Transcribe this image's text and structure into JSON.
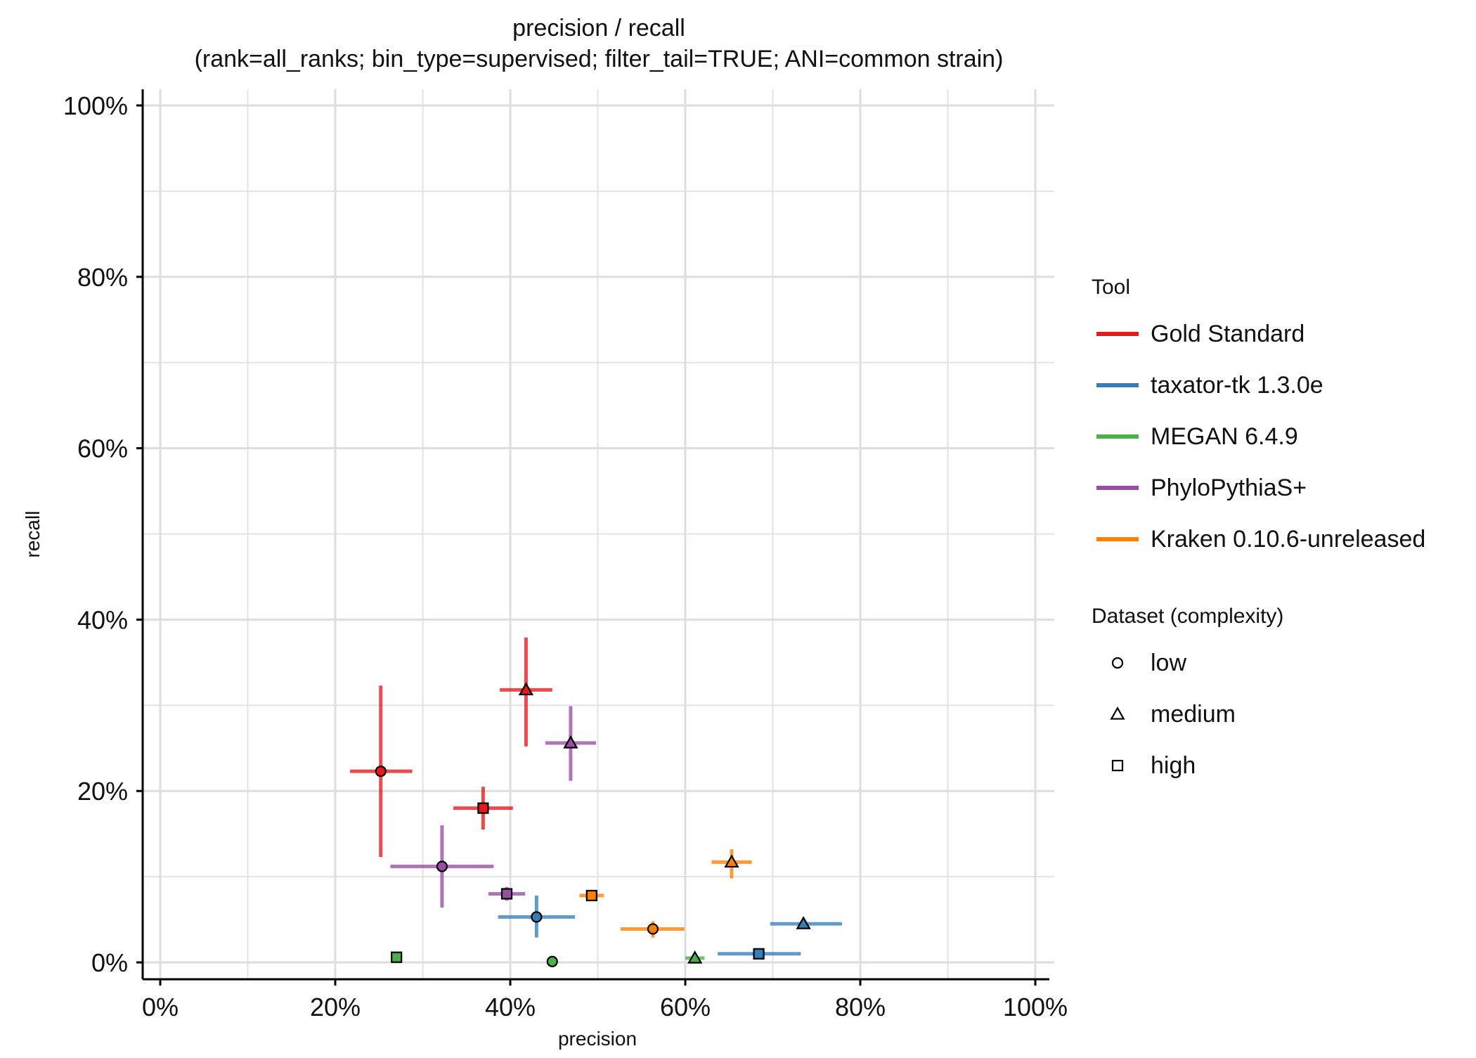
{
  "chart_data": {
    "type": "scatter",
    "title": "precision / recall",
    "subtitle": "(rank=all_ranks; bin_type=supervised; filter_tail=TRUE; ANI=common strain)",
    "xlabel": "precision",
    "ylabel": "recall",
    "xlim": [
      0,
      100
    ],
    "ylim": [
      0,
      100
    ],
    "x_ticks": [
      0,
      20,
      40,
      60,
      80,
      100
    ],
    "y_ticks": [
      0,
      20,
      40,
      60,
      80,
      100
    ],
    "x_tick_labels": [
      "0%",
      "20%",
      "40%",
      "60%",
      "80%",
      "100%"
    ],
    "y_tick_labels": [
      "0%",
      "20%",
      "40%",
      "60%",
      "80%",
      "100%"
    ],
    "grid": true,
    "legend_placement": "right",
    "legend_tool_title": "Tool",
    "legend_dataset_title": "Dataset (complexity)",
    "datasets": [
      {
        "key": "low",
        "label": "low",
        "shape": "circle"
      },
      {
        "key": "medium",
        "label": "medium",
        "shape": "triangle"
      },
      {
        "key": "high",
        "label": "high",
        "shape": "square"
      }
    ],
    "series": [
      {
        "name": "Gold Standard",
        "color": "#e41a1c",
        "points": [
          {
            "dataset": "low",
            "x": 25.2,
            "y": 22.3,
            "x_err": [
              21.7,
              28.8
            ],
            "y_err": [
              12.3,
              32.3
            ]
          },
          {
            "dataset": "medium",
            "x": 41.8,
            "y": 31.8,
            "x_err": [
              38.8,
              44.8
            ],
            "y_err": [
              25.2,
              37.9
            ]
          },
          {
            "dataset": "high",
            "x": 36.9,
            "y": 18.0,
            "x_err": [
              33.5,
              40.3
            ],
            "y_err": [
              15.5,
              20.5
            ]
          }
        ]
      },
      {
        "name": "taxator-tk 1.3.0e",
        "color": "#377eb8",
        "points": [
          {
            "dataset": "low",
            "x": 43.0,
            "y": 5.3,
            "x_err": [
              38.6,
              47.4
            ],
            "y_err": [
              2.9,
              7.8
            ]
          },
          {
            "dataset": "medium",
            "x": 73.5,
            "y": 4.5,
            "x_err": [
              69.7,
              77.9
            ],
            "y_err": [
              4.0,
              5.0
            ]
          },
          {
            "dataset": "high",
            "x": 68.4,
            "y": 1.0,
            "x_err": [
              63.7,
              73.2
            ],
            "y_err": [
              0.6,
              1.4
            ]
          }
        ]
      },
      {
        "name": "MEGAN 6.4.9",
        "color": "#4daf4a",
        "points": [
          {
            "dataset": "low",
            "x": 44.8,
            "y": 0.1,
            "x_err": [
              44.5,
              45.1
            ],
            "y_err": [
              0.0,
              0.2
            ]
          },
          {
            "dataset": "medium",
            "x": 61.1,
            "y": 0.5,
            "x_err": [
              60.0,
              62.2
            ],
            "y_err": [
              0.3,
              0.7
            ]
          },
          {
            "dataset": "high",
            "x": 27.0,
            "y": 0.6,
            "x_err": [
              26.8,
              27.2
            ],
            "y_err": [
              0.4,
              0.8
            ]
          }
        ]
      },
      {
        "name": "PhyloPythiaS+",
        "color": "#984ea3",
        "points": [
          {
            "dataset": "low",
            "x": 32.2,
            "y": 11.2,
            "x_err": [
              26.3,
              38.1
            ],
            "y_err": [
              6.4,
              16.0
            ]
          },
          {
            "dataset": "medium",
            "x": 46.9,
            "y": 25.6,
            "x_err": [
              44.0,
              49.8
            ],
            "y_err": [
              21.2,
              29.9
            ]
          },
          {
            "dataset": "high",
            "x": 39.6,
            "y": 8.0,
            "x_err": [
              37.5,
              41.7
            ],
            "y_err": [
              7.2,
              8.8
            ]
          }
        ]
      },
      {
        "name": "Kraken 0.10.6-unreleased",
        "color": "#ff7f00",
        "points": [
          {
            "dataset": "low",
            "x": 56.3,
            "y": 3.9,
            "x_err": [
              52.6,
              59.9
            ],
            "y_err": [
              2.9,
              4.8
            ]
          },
          {
            "dataset": "medium",
            "x": 65.3,
            "y": 11.7,
            "x_err": [
              63.0,
              67.6
            ],
            "y_err": [
              9.8,
              13.2
            ]
          },
          {
            "dataset": "high",
            "x": 49.3,
            "y": 7.8,
            "x_err": [
              47.9,
              50.7
            ],
            "y_err": [
              7.3,
              8.3
            ]
          }
        ]
      }
    ]
  }
}
